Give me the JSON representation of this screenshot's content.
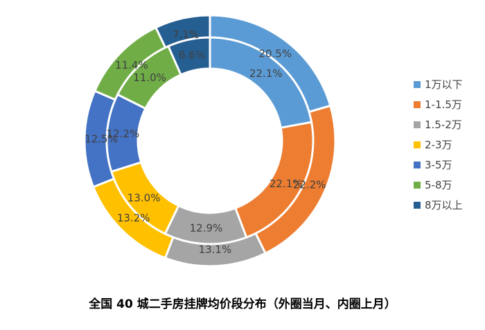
{
  "chart_data": {
    "type": "donut",
    "title": "全国 40 城二手房挂牌均价段分布（外圈当月、内圈上月）",
    "categories": [
      "1万以下",
      "1-1.5万",
      "1.5-2万",
      "2-3万",
      "3-5万",
      "5-8万",
      "8万以上"
    ],
    "colors": [
      "#5B9BD5",
      "#ED7D31",
      "#A5A5A5",
      "#FFC000",
      "#4472C4",
      "#70AD47",
      "#255E91"
    ],
    "series": [
      {
        "ring": "outer",
        "values": [
          20.5,
          22.2,
          13.1,
          13.2,
          12.5,
          11.4,
          7.1
        ],
        "labels": [
          "20.5%",
          "22.2%",
          "13.1%",
          "13.2%",
          "12.5%",
          "11.4%",
          "7.1%"
        ]
      },
      {
        "ring": "inner",
        "values": [
          22.1,
          22.1,
          12.9,
          13.0,
          12.2,
          11.0,
          6.6
        ],
        "labels": [
          "22.1%",
          "22.1%",
          "12.9%",
          "13.0%",
          "12.2%",
          "11.0%",
          "6.6%"
        ]
      }
    ],
    "legend": {
      "position": "right"
    }
  }
}
